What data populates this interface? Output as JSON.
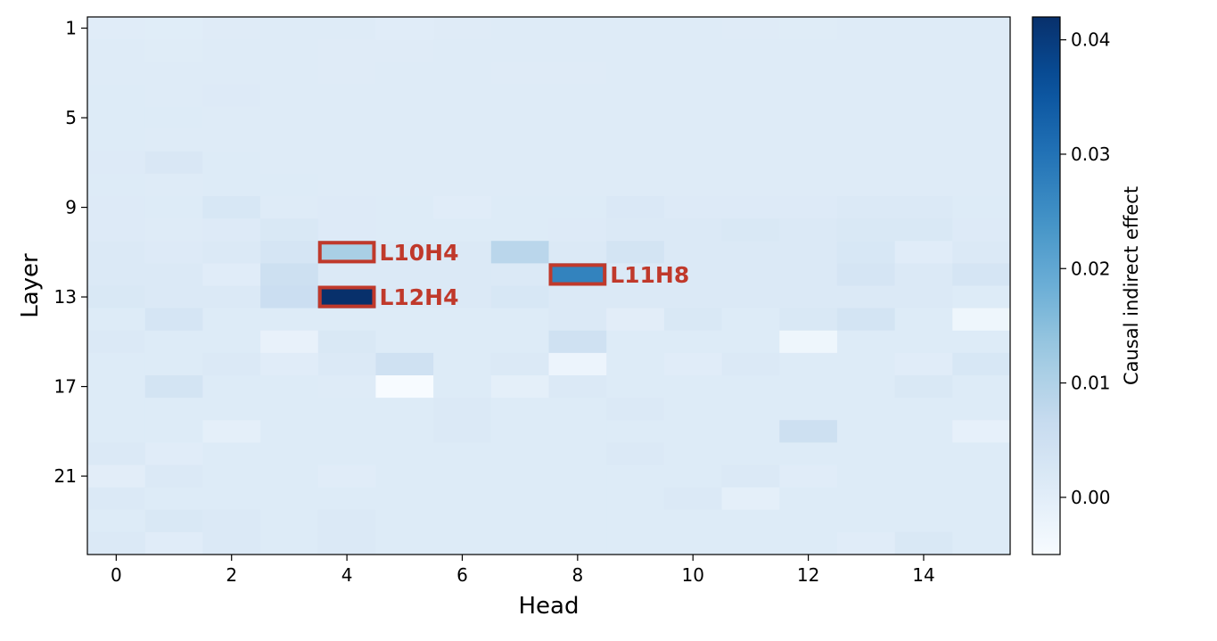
{
  "chart_data": {
    "type": "heatmap",
    "title": "",
    "xlabel": "Head",
    "ylabel": "Layer",
    "x_ticks": [
      0,
      2,
      4,
      6,
      8,
      10,
      12,
      14
    ],
    "y_ticks": [
      1,
      5,
      9,
      13,
      17,
      21
    ],
    "x_range": [
      -0.5,
      15.5
    ],
    "y_range": [
      0.5,
      24.5
    ],
    "heads": [
      0,
      1,
      2,
      3,
      4,
      5,
      6,
      7,
      8,
      9,
      10,
      11,
      12,
      13,
      14,
      15
    ],
    "layers": [
      1,
      2,
      3,
      4,
      5,
      6,
      7,
      8,
      9,
      10,
      11,
      12,
      13,
      14,
      15,
      16,
      17,
      18,
      19,
      20,
      21,
      22,
      23,
      24
    ],
    "colorbar": {
      "label": "Causal indirect effect",
      "colormap": "Blues",
      "vmin": -0.005,
      "vmax": 0.042,
      "ticks": [
        0.0,
        0.01,
        0.02,
        0.03,
        0.04
      ],
      "tick_labels": [
        "0.00",
        "0.01",
        "0.02",
        "0.03",
        "0.04"
      ]
    },
    "values": [
      [
        0.0005,
        0.0003,
        0.0007,
        0.0008,
        0.0008,
        0.0005,
        0.0007,
        0.0008,
        0.0008,
        0.0008,
        0.0008,
        0.0007,
        0.0006,
        0.0008,
        0.0008,
        0.0008
      ],
      [
        0.0008,
        0.0006,
        0.0008,
        0.0009,
        0.0007,
        0.0007,
        0.0008,
        0.0008,
        0.0008,
        0.0008,
        0.0008,
        0.0008,
        0.0008,
        0.0008,
        0.0008,
        0.0008
      ],
      [
        0.0009,
        0.0008,
        0.0008,
        0.0008,
        0.0007,
        0.0008,
        0.0008,
        0.0007,
        0.0007,
        0.0008,
        0.0008,
        0.0008,
        0.0008,
        0.0008,
        0.0008,
        0.0008
      ],
      [
        0.001,
        0.0008,
        0.0012,
        0.0009,
        0.0008,
        0.0008,
        0.0008,
        0.0008,
        0.0008,
        0.0008,
        0.0008,
        0.0008,
        0.0009,
        0.0008,
        0.0008,
        0.0008
      ],
      [
        0.001,
        0.001,
        0.0009,
        0.0009,
        0.0008,
        0.0008,
        0.0008,
        0.0008,
        0.0008,
        0.0008,
        0.0008,
        0.0008,
        0.0009,
        0.0008,
        0.0008,
        0.0008
      ],
      [
        0.001,
        0.0009,
        0.0009,
        0.0009,
        0.0008,
        0.0009,
        0.0008,
        0.0008,
        0.0008,
        0.0008,
        0.0008,
        0.0008,
        0.0009,
        0.0008,
        0.0008,
        0.0008
      ],
      [
        0.0012,
        0.0022,
        0.001,
        0.0009,
        0.0008,
        0.0008,
        0.0008,
        0.0008,
        0.0008,
        0.0008,
        0.0009,
        0.0008,
        0.0008,
        0.0008,
        0.0008,
        0.0008
      ],
      [
        0.001,
        0.0008,
        0.001,
        0.001,
        0.0008,
        0.0008,
        0.0008,
        0.0008,
        0.0008,
        0.0009,
        0.0009,
        0.0008,
        0.0008,
        0.0008,
        0.0008,
        0.0008
      ],
      [
        0.0012,
        0.001,
        0.0025,
        0.0008,
        0.0012,
        0.001,
        0.0005,
        0.001,
        0.001,
        0.0018,
        0.0012,
        0.0012,
        0.0012,
        0.0015,
        0.0015,
        0.001
      ],
      [
        0.0012,
        0.0008,
        0.0012,
        0.002,
        0.0012,
        0.001,
        0.001,
        0.001,
        0.0012,
        0.0015,
        0.0015,
        0.002,
        0.0015,
        0.002,
        0.002,
        0.0012
      ],
      [
        0.0015,
        0.0012,
        0.0015,
        0.003,
        0.011,
        0.0015,
        0.0015,
        0.0085,
        0.0015,
        0.0035,
        0.0015,
        0.0015,
        0.0015,
        0.0025,
        0.0005,
        0.0015
      ],
      [
        0.0015,
        0.0015,
        0.0005,
        0.005,
        0.0015,
        0.0015,
        0.0015,
        0.0015,
        0.027,
        0.0015,
        0.0015,
        0.0015,
        0.0015,
        0.003,
        0.0015,
        0.003
      ],
      [
        0.002,
        0.0015,
        0.0015,
        0.0055,
        0.042,
        0.0015,
        0.0015,
        0.0025,
        0.0015,
        0.0015,
        0.0015,
        0.0015,
        0.0015,
        0.0015,
        0.0015,
        0.001
      ],
      [
        0.001,
        0.003,
        0.001,
        0.001,
        0.001,
        0.001,
        0.001,
        0.001,
        0.0015,
        0.0,
        0.002,
        0.001,
        0.002,
        0.0035,
        0.001,
        -0.003
      ],
      [
        0.0015,
        0.001,
        0.001,
        -0.0015,
        0.002,
        0.001,
        0.001,
        0.001,
        0.0045,
        0.001,
        0.001,
        0.001,
        -0.003,
        0.001,
        0.001,
        0.001
      ],
      [
        0.001,
        0.001,
        0.0015,
        0.0005,
        0.0015,
        0.0045,
        0.001,
        0.0015,
        -0.0025,
        0.001,
        0.0005,
        0.0015,
        0.001,
        0.001,
        0.0005,
        0.0025
      ],
      [
        0.001,
        0.0035,
        0.001,
        0.001,
        0.0008,
        -0.005,
        0.001,
        -0.0005,
        0.0015,
        0.001,
        0.001,
        0.001,
        0.001,
        0.001,
        0.002,
        0.001
      ],
      [
        0.001,
        0.001,
        0.001,
        0.001,
        0.001,
        0.001,
        0.0015,
        0.001,
        0.001,
        0.0015,
        0.001,
        0.001,
        0.001,
        0.001,
        0.001,
        0.001
      ],
      [
        0.001,
        0.001,
        -0.0005,
        0.001,
        0.001,
        0.001,
        0.0015,
        0.001,
        0.001,
        0.001,
        0.001,
        0.001,
        0.005,
        0.001,
        0.001,
        -0.001
      ],
      [
        0.0015,
        0.0005,
        0.001,
        0.001,
        0.001,
        0.001,
        0.001,
        0.001,
        0.001,
        0.0015,
        0.001,
        0.001,
        0.001,
        0.001,
        0.001,
        0.001
      ],
      [
        0.0,
        0.0015,
        0.001,
        0.001,
        0.0005,
        0.001,
        0.001,
        0.001,
        0.001,
        0.001,
        0.001,
        0.0015,
        0.0005,
        0.001,
        0.001,
        0.001
      ],
      [
        0.0015,
        0.001,
        0.001,
        0.001,
        0.001,
        0.001,
        0.001,
        0.001,
        0.001,
        0.001,
        0.0015,
        -0.0005,
        0.001,
        0.001,
        0.001,
        0.001
      ],
      [
        0.001,
        0.002,
        0.0015,
        0.001,
        0.0015,
        0.001,
        0.001,
        0.001,
        0.001,
        0.001,
        0.001,
        0.001,
        0.001,
        0.001,
        0.001,
        0.001
      ],
      [
        0.0015,
        0.0005,
        0.0015,
        0.001,
        0.0015,
        0.001,
        0.001,
        0.001,
        0.001,
        0.001,
        0.001,
        0.001,
        0.001,
        0.0005,
        0.002,
        0.001
      ]
    ],
    "annotations": [
      {
        "label": "L10H4",
        "layer": 11,
        "head": 4,
        "color": "#c0392b"
      },
      {
        "label": "L11H8",
        "layer": 12,
        "head": 8,
        "color": "#c0392b"
      },
      {
        "label": "L12H4",
        "layer": 13,
        "head": 4,
        "color": "#c0392b"
      }
    ]
  }
}
